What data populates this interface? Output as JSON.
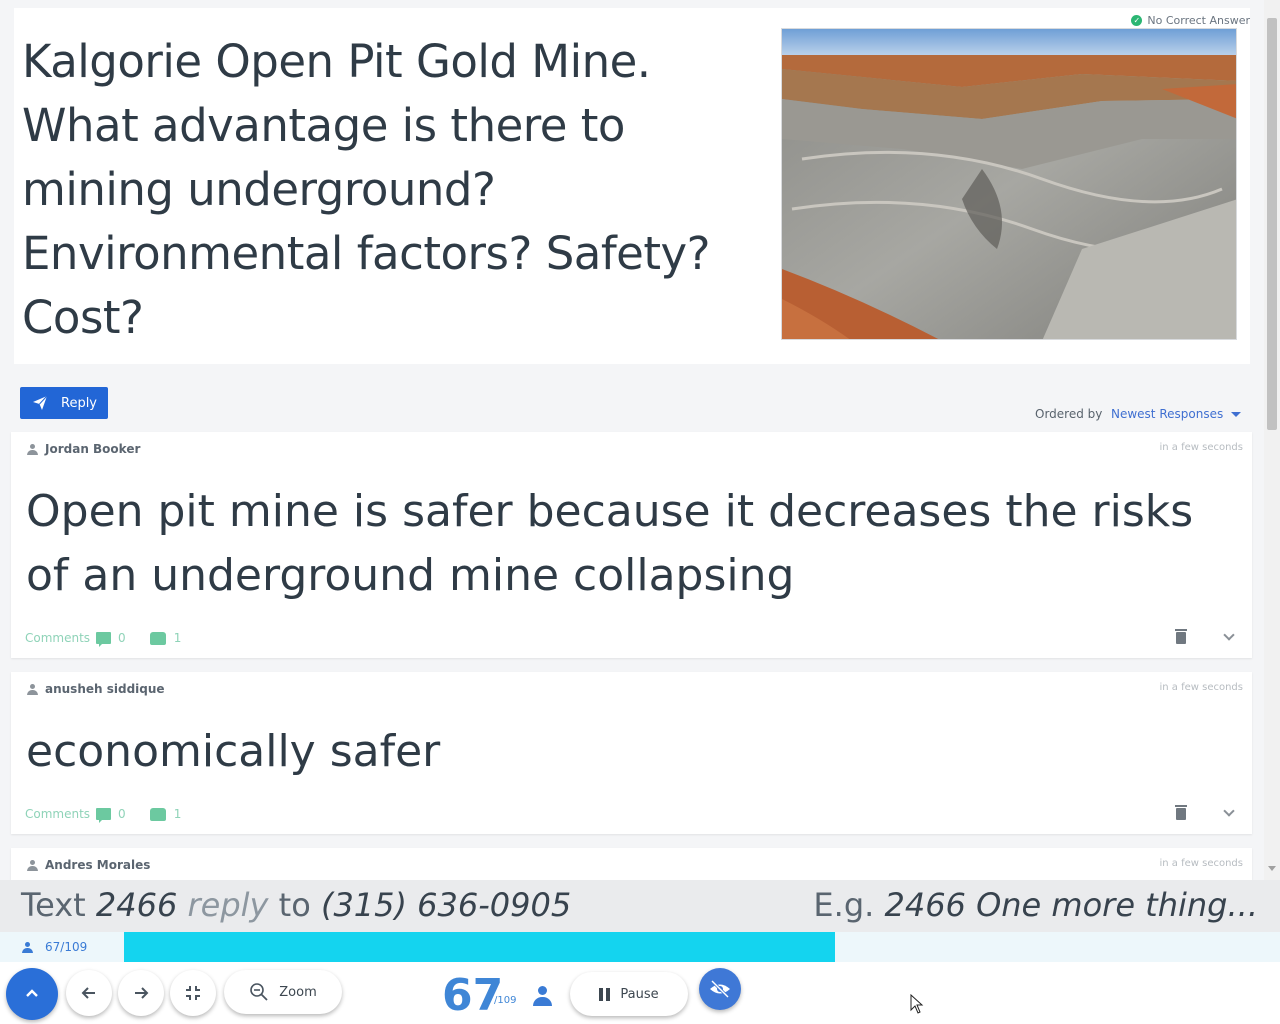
{
  "question": {
    "text": "Kalgorie Open Pit Gold Mine.  What advantage is there to mining underground?  Environmental factors? Safety? Cost?",
    "status": "No Correct Answer",
    "image_alt": "open pit gold mine photo"
  },
  "toolbar": {
    "reply_label": "Reply",
    "ordered_by_label": "Ordered by",
    "ordered_by_value": "Newest Responses"
  },
  "responses": [
    {
      "author": "Jordan Booker",
      "time": "in a few seconds",
      "text": "Open pit mine is safer because it decreases the risks of an underground mine collapsing",
      "comments_label": "Comments",
      "comments_count": "0",
      "likes": "1"
    },
    {
      "author": "anusheh siddique",
      "time": "in a few seconds",
      "text": "economically safer",
      "comments_label": "Comments",
      "comments_count": "0",
      "likes": "1"
    },
    {
      "author": "Andres Morales",
      "time": "in a few seconds"
    }
  ],
  "sms": {
    "text_word": "Text",
    "code": "2466",
    "reply_word": "reply",
    "to_word": "to",
    "phone": "(315) 636-0905",
    "eg_word": "E.g.",
    "example": "2466 One more thing..."
  },
  "progress": {
    "label": "67/109",
    "responded": 67,
    "total": 109,
    "fraction": 0.6147,
    "fill_color": "#14d4ef"
  },
  "controls": {
    "zoom_label": "Zoom",
    "pause_label": "Pause",
    "count": "67",
    "count_total": "/109"
  },
  "colors": {
    "accent": "#2266d6",
    "progress": "#14d4ef",
    "like": "#6cc9a0"
  },
  "icons": [
    "paper-plane-icon",
    "person-icon",
    "comment-icon",
    "thumbs-up-icon",
    "trash-icon",
    "chevron-down-icon",
    "chevron-up-icon",
    "arrow-left-icon",
    "arrow-right-icon",
    "compress-icon",
    "zoom-out-icon",
    "pause-icon",
    "eye-slash-icon",
    "check-circle-icon"
  ]
}
